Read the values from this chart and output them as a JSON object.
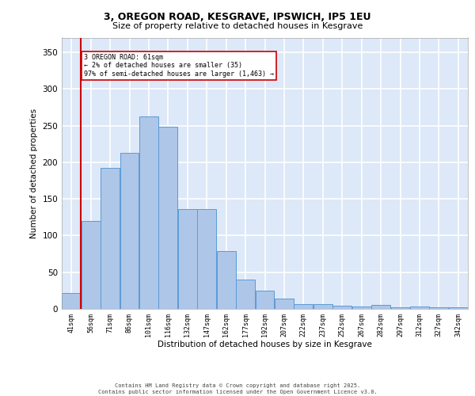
{
  "title_line1": "3, OREGON ROAD, KESGRAVE, IPSWICH, IP5 1EU",
  "title_line2": "Size of property relative to detached houses in Kesgrave",
  "xlabel": "Distribution of detached houses by size in Kesgrave",
  "ylabel": "Number of detached properties",
  "categories": [
    "41sqm",
    "56sqm",
    "71sqm",
    "86sqm",
    "101sqm",
    "116sqm",
    "132sqm",
    "147sqm",
    "162sqm",
    "177sqm",
    "192sqm",
    "207sqm",
    "222sqm",
    "237sqm",
    "252sqm",
    "267sqm",
    "282sqm",
    "297sqm",
    "312sqm",
    "327sqm",
    "342sqm"
  ],
  "bar_heights_clean": [
    22,
    120,
    192,
    213,
    262,
    249,
    136,
    136,
    79,
    40,
    25,
    14,
    7,
    6,
    4,
    3,
    5,
    2,
    3,
    2,
    2
  ],
  "bar_color": "#aec6e8",
  "bar_edge_color": "#5b9bd5",
  "vline_x_idx": 1,
  "vline_color": "#cc0000",
  "annotation_text": "3 OREGON ROAD: 61sqm\n← 2% of detached houses are smaller (35)\n97% of semi-detached houses are larger (1,463) →",
  "annotation_box_color": "#cc0000",
  "ylim": [
    0,
    370
  ],
  "yticks": [
    0,
    50,
    100,
    150,
    200,
    250,
    300,
    350
  ],
  "footer": "Contains HM Land Registry data © Crown copyright and database right 2025.\nContains public sector information licensed under the Open Government Licence v3.0.",
  "bg_color": "#dde8f8",
  "grid_color": "#ffffff"
}
